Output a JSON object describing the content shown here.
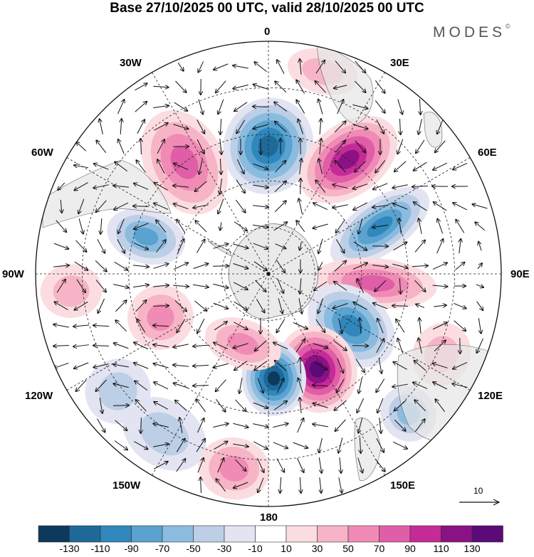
{
  "title": "Base 27/10/2025 00 UTC, valid 28/10/2025 00 UTC",
  "brand": "MODES",
  "brand_mark": "©",
  "longitude_labels": {
    "lon_0": "0",
    "lon_30e": "30E",
    "lon_60e": "60E",
    "lon_90e": "90E",
    "lon_120e": "120E",
    "lon_150e": "150E",
    "lon_180": "180",
    "lon_150w": "150W",
    "lon_120w": "120W",
    "lon_90w": "90W",
    "lon_60w": "60W",
    "lon_30w": "30W"
  },
  "colorbar": {
    "colors": [
      "#0d3a5c",
      "#1d6a99",
      "#2f87bb",
      "#5aa2cf",
      "#8bbce0",
      "#bccfe6",
      "#e3e4f2",
      "#ffffff",
      "#fbdde1",
      "#f7b4c6",
      "#f08bb5",
      "#e05ea8",
      "#c52b96",
      "#8a1284",
      "#5c0a78"
    ],
    "tick_labels": [
      "-130",
      "-110",
      "-90",
      "-70",
      "-50",
      "-30",
      "-10",
      "10",
      "30",
      "50",
      "70",
      "90",
      "110",
      "130"
    ]
  },
  "reference_vector": {
    "label": "10"
  },
  "anomalies": [
    {
      "name": "neg-0",
      "lon": 0,
      "r": 0.55,
      "value": -110,
      "rw": 0.22,
      "aw": 25,
      "rot": 0.6
    },
    {
      "name": "pos-30e",
      "lon": 35,
      "r": 0.6,
      "value": 110,
      "rw": 0.25,
      "aw": 20,
      "rot": 0.6
    },
    {
      "name": "neg-60e",
      "lon": 67,
      "r": 0.52,
      "value": -90,
      "rw": 0.26,
      "aw": 15,
      "rot": -0.4
    },
    {
      "name": "pos-90e",
      "lon": 95,
      "r": 0.46,
      "value": 70,
      "rw": 0.28,
      "aw": 14,
      "rot": 0
    },
    {
      "name": "neg-120e",
      "lon": 122,
      "r": 0.42,
      "value": -90,
      "rw": 0.22,
      "aw": 20,
      "rot": 0.3
    },
    {
      "name": "pos-150e",
      "lon": 153,
      "r": 0.46,
      "value": 130,
      "rw": 0.2,
      "aw": 22,
      "rot": 0.2
    },
    {
      "name": "neg-180",
      "lon": 177,
      "r": 0.45,
      "value": -130,
      "rw": 0.17,
      "aw": 18,
      "rot": 0
    },
    {
      "name": "pos-160w",
      "lon": -160,
      "r": 0.32,
      "value": 50,
      "rw": 0.11,
      "aw": 22,
      "rot": 0
    },
    {
      "name": "pos-110w",
      "lon": -112,
      "r": 0.5,
      "value": 50,
      "rw": 0.15,
      "aw": 18,
      "rot": 0
    },
    {
      "name": "neg-70w",
      "lon": -73,
      "r": 0.55,
      "value": -70,
      "rw": 0.18,
      "aw": 15,
      "rot": 0
    },
    {
      "name": "pos-35w",
      "lon": -37,
      "r": 0.6,
      "value": 70,
      "rw": 0.25,
      "aw": 22,
      "rot": 0.3
    },
    {
      "name": "neg-150w",
      "lon": -147,
      "r": 0.82,
      "value": -30,
      "rw": 0.15,
      "aw": 25,
      "rot": 0
    },
    {
      "name": "pos-170w",
      "lon": -170,
      "r": 0.85,
      "value": 50,
      "rw": 0.14,
      "aw": 20,
      "rot": 0
    },
    {
      "name": "neg-135e",
      "lon": 135,
      "r": 0.85,
      "value": -50,
      "rw": 0.13,
      "aw": 15,
      "rot": 0
    },
    {
      "name": "pos-115e",
      "lon": 115,
      "r": 0.82,
      "value": 30,
      "rw": 0.13,
      "aw": 18,
      "rot": 0
    },
    {
      "name": "neg-130w",
      "lon": -128,
      "r": 0.82,
      "value": -30,
      "rw": 0.15,
      "aw": 18,
      "rot": 0
    },
    {
      "name": "pos-10e-outer",
      "lon": 15,
      "r": 0.9,
      "value": 30,
      "rw": 0.1,
      "aw": 20,
      "rot": 0
    },
    {
      "name": "pos-85w-outer",
      "lon": -95,
      "r": 0.85,
      "value": 30,
      "rw": 0.14,
      "aw": 15,
      "rot": 0
    }
  ]
}
